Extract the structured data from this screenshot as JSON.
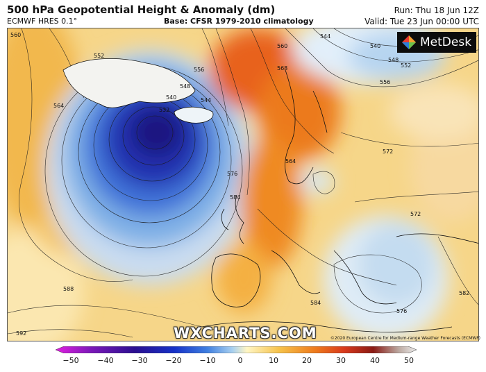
{
  "header": {
    "title": "500 hPa Geopotential Height & Anomaly (dm)",
    "model": "ECMWF HRES 0.1°",
    "base": "Base: CFSR 1979-2010 climatology",
    "run": "Run: Thu 18 Jun 12Z",
    "valid": "Valid: Tue 23 Jun 00:00 UTC"
  },
  "branding": {
    "logo_text": "MetDesk",
    "watermark": "WXCHARTS.COM",
    "copyright": "©2020 European Centre for Medium-range Weather Forecasts (ECMWF)"
  },
  "colorbar": {
    "ticks": [
      "−50",
      "−40",
      "−30",
      "−20",
      "−10",
      "0",
      "10",
      "20",
      "30",
      "40",
      "50"
    ],
    "colors": [
      "#e020e0",
      "#7a18b8",
      "#2a0f90",
      "#1632c8",
      "#3f7fe0",
      "#a8d0f0",
      "#fff6c4",
      "#f6c24a",
      "#ee7a1c",
      "#d8391c",
      "#8a1a14",
      "#bba8a0",
      "#ececec"
    ]
  },
  "contour_labels": [
    "560",
    "552",
    "564",
    "548",
    "540",
    "532",
    "544",
    "556",
    "568",
    "576",
    "584",
    "588",
    "592",
    "564",
    "572",
    "560",
    "544",
    "540",
    "548",
    "552",
    "556",
    "572",
    "584",
    "576",
    "582"
  ]
}
